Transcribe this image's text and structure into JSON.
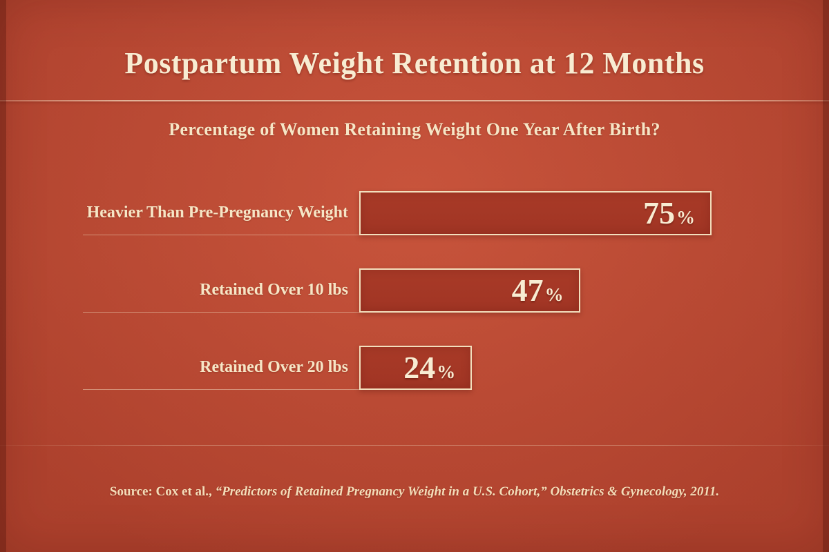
{
  "page": {
    "title": "Postpartum Weight Retention at 12 Months",
    "subtitle": "Percentage of Women Retaining Weight One Year After Birth?",
    "source_prefix": "Source: Cox et al., ",
    "source_citation": "“Predictors of Retained Pregnancy Weight in a U.S. Cohort,” Obstetrics & Gynecology, 2011."
  },
  "colors": {
    "background": "#c44b34",
    "bar_fill": "#a53824",
    "bar_border": "#f3dfbd",
    "text_cream": "#f7e9cd"
  },
  "chart_data": {
    "type": "bar",
    "orientation": "horizontal",
    "title": "Postpartum Weight Retention at 12 Months",
    "subtitle": "Percentage of Women Retaining Weight One Year After Birth?",
    "categories": [
      "Heavier Than Pre-Pregnancy Weight",
      "Retained Over 10 lbs",
      "Retained Over 20 lbs"
    ],
    "values": [
      75,
      47,
      24
    ],
    "unit": "%",
    "xlim": [
      0,
      100
    ],
    "grid": false,
    "legend": false,
    "value_labels_position": "inside-right",
    "source": "Source: Cox et al., “Predictors of Retained Pregnancy Weight in a U.S. Cohort,” Obstetrics & Gynecology, 2011."
  }
}
